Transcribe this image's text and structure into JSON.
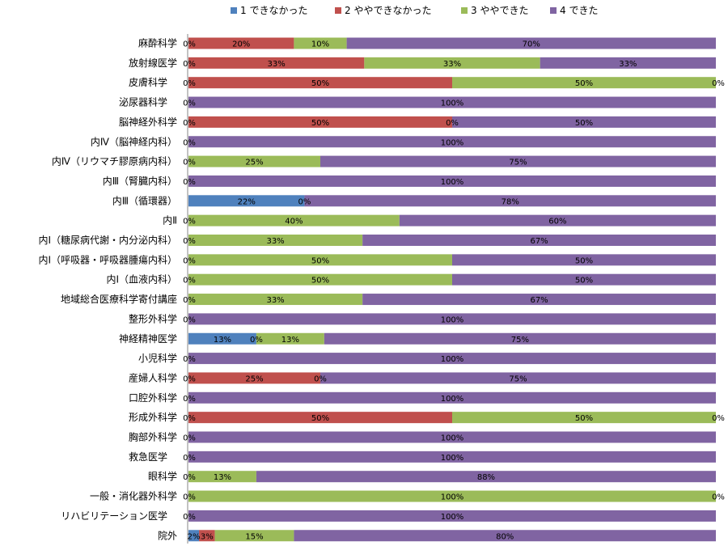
{
  "chart_data": {
    "type": "bar",
    "orientation": "horizontal",
    "stacked": "percent",
    "legend_position": "top",
    "grid": false,
    "xlim": [
      0,
      100
    ],
    "categories": [
      "麻酔科学",
      "放射線医学",
      "皮膚科学　",
      "泌尿器科学　",
      "脳神経外科学",
      "内Ⅳ（脳神経内科）",
      "内Ⅳ（リウマチ膠原病内科）",
      "内Ⅲ（腎臓内科）",
      "内Ⅲ（循環器）",
      "内Ⅱ",
      "内Ⅰ（糖尿病代謝・内分泌内科）",
      "内Ⅰ（呼吸器・呼吸器腫瘍内科）",
      "内Ⅰ（血液内科）",
      "地域総合医療科学寄付講座",
      "整形外科学",
      "神経精神医学",
      "小児科学",
      "産婦人科学",
      "口腔外科学",
      "形成外科学",
      "胸部外科学",
      "救急医学　",
      "眼科学",
      "一般・消化器外科学",
      "リハビリテーション医学　",
      "院外"
    ],
    "series": [
      {
        "name": "1 できなかった",
        "color": "#4F81BD",
        "values": [
          0,
          0,
          0,
          0,
          0,
          0,
          0,
          0,
          22,
          0,
          0,
          0,
          0,
          0,
          0,
          13,
          0,
          0,
          0,
          0,
          0,
          0,
          0,
          0,
          0,
          2
        ]
      },
      {
        "name": "2 ややできなかった",
        "color": "#C0504D",
        "values": [
          20,
          33,
          50,
          0,
          50,
          0,
          0,
          0,
          0,
          0,
          0,
          0,
          0,
          0,
          0,
          0,
          0,
          25,
          0,
          50,
          0,
          0,
          0,
          0,
          0,
          3
        ]
      },
      {
        "name": "3 ややできた",
        "color": "#9BBB59",
        "values": [
          10,
          33,
          50,
          0,
          0,
          0,
          25,
          0,
          0,
          40,
          33,
          50,
          50,
          33,
          0,
          13,
          0,
          0,
          0,
          50,
          0,
          0,
          13,
          100,
          0,
          15
        ]
      },
      {
        "name": "4 できた",
        "color": "#8064A2",
        "values": [
          70,
          33,
          null,
          100,
          50,
          100,
          75,
          100,
          78,
          60,
          67,
          50,
          50,
          67,
          100,
          75,
          100,
          75,
          100,
          null,
          100,
          100,
          88,
          null,
          100,
          80
        ]
      }
    ],
    "labels": [
      [
        "0%",
        "20%",
        "10%",
        "70%"
      ],
      [
        "0%",
        "33%",
        "33%",
        "33%"
      ],
      [
        "0%",
        "50%",
        "50%",
        "0%"
      ],
      [
        "0%",
        "",
        "",
        "100%"
      ],
      [
        "0%",
        "50%",
        "0%",
        "50%"
      ],
      [
        "0%",
        "",
        "",
        "100%"
      ],
      [
        "0%",
        "",
        "25%",
        "75%"
      ],
      [
        "0%",
        "",
        "",
        "100%"
      ],
      [
        "22%",
        "0%",
        "",
        "78%"
      ],
      [
        "0%",
        "",
        "40%",
        "60%"
      ],
      [
        "0%",
        "",
        "33%",
        "67%"
      ],
      [
        "0%",
        "",
        "50%",
        "50%"
      ],
      [
        "0%",
        "",
        "50%",
        "50%"
      ],
      [
        "0%",
        "",
        "33%",
        "67%"
      ],
      [
        "0%",
        "",
        "",
        "100%"
      ],
      [
        "13%",
        "0%",
        "13%",
        "75%"
      ],
      [
        "0%",
        "",
        "",
        "100%"
      ],
      [
        "0%",
        "25%",
        "0%",
        "75%"
      ],
      [
        "0%",
        "",
        "",
        "100%"
      ],
      [
        "0%",
        "50%",
        "50%",
        "0%"
      ],
      [
        "0%",
        "",
        "",
        "100%"
      ],
      [
        "0%",
        "",
        "",
        "100%"
      ],
      [
        "0%",
        "",
        "13%",
        "88%"
      ],
      [
        "0%",
        "",
        "100%",
        "0%"
      ],
      [
        "0%",
        "",
        "",
        "100%"
      ],
      [
        "2%",
        "3%",
        "15%",
        "80%"
      ]
    ]
  }
}
